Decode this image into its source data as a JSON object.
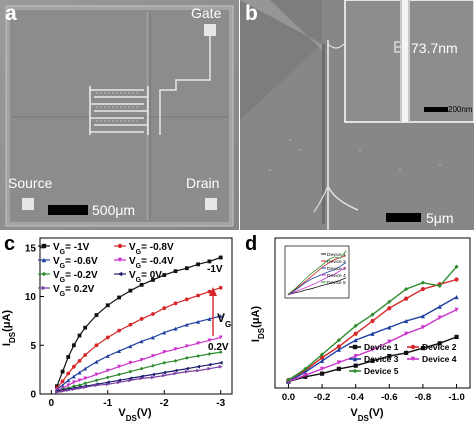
{
  "panel_a": {
    "letter": "a",
    "labels": {
      "gate": "Gate",
      "source": "Source",
      "drain": "Drain"
    },
    "scalebar": "500μm"
  },
  "panel_b": {
    "letter": "b",
    "inset_measure": "73.7nm",
    "inset_scalebar": "200nm",
    "scalebar": "5μm"
  },
  "panel_c": {
    "letter": "c",
    "legend_prefix": "V",
    "legend_sub": "G",
    "legend": [
      "-1V",
      "-0.8V",
      "-0.6V",
      "-0.4V",
      "-0.2V",
      "0V",
      "0.2V"
    ],
    "label_top": "-1V",
    "label_bottom": "0.2V",
    "vg_label": "V",
    "vg_sub": "G"
  },
  "panel_d": {
    "letter": "d",
    "legend": [
      "Device 1",
      "Device 2",
      "Device 3",
      "Device 4",
      "Device 5"
    ]
  },
  "chart_data": [
    {
      "id": "c",
      "type": "line",
      "xlabel": "V_DS(V)",
      "ylabel": "I_DS(μA)",
      "xlim": [
        0.2,
        -3.2
      ],
      "ylim": [
        0,
        16
      ],
      "xticks": [
        0,
        -1,
        -2,
        -3
      ],
      "yticks": [
        0,
        5,
        10,
        15
      ],
      "x": [
        -0.1,
        -0.2,
        -0.3,
        -0.4,
        -0.5,
        -0.6,
        -0.8,
        -1.0,
        -1.2,
        -1.4,
        -1.6,
        -1.8,
        -2.0,
        -2.2,
        -2.4,
        -2.6,
        -2.8,
        -3.0
      ],
      "series": [
        {
          "name": "-1V",
          "color": "#111111",
          "marker": "square",
          "values": [
            0.8,
            2.3,
            3.8,
            5.0,
            6.0,
            6.8,
            8.1,
            9.1,
            9.9,
            10.6,
            11.2,
            11.7,
            12.2,
            12.6,
            12.9,
            13.3,
            13.6,
            14.0
          ]
        },
        {
          "name": "-0.8V",
          "color": "#d62728",
          "marker": "circle",
          "values": [
            0.6,
            1.3,
            2.1,
            2.8,
            3.4,
            4.0,
            5.0,
            5.8,
            6.5,
            7.1,
            7.7,
            8.2,
            8.8,
            9.3,
            9.7,
            10.1,
            10.5,
            10.9
          ]
        },
        {
          "name": "-0.6V",
          "color": "#1f3fa0",
          "marker": "triangle",
          "values": [
            0.5,
            0.9,
            1.4,
            1.8,
            2.2,
            2.6,
            3.3,
            3.9,
            4.4,
            4.9,
            5.4,
            5.8,
            6.3,
            6.7,
            7.1,
            7.4,
            7.7,
            8.0
          ]
        },
        {
          "name": "-0.4V",
          "color": "#cc33cc",
          "marker": "triangle-down",
          "values": [
            0.4,
            0.6,
            0.9,
            1.2,
            1.4,
            1.6,
            2.0,
            2.4,
            2.8,
            3.2,
            3.5,
            3.9,
            4.3,
            4.6,
            4.9,
            5.2,
            5.5,
            5.8
          ]
        },
        {
          "name": "-0.2V",
          "color": "#2e8b2e",
          "marker": "diamond",
          "values": [
            0.3,
            0.5,
            0.6,
            0.8,
            0.9,
            1.1,
            1.4,
            1.7,
            2.0,
            2.3,
            2.6,
            2.9,
            3.2,
            3.4,
            3.7,
            3.9,
            4.1,
            4.3
          ]
        },
        {
          "name": "0V",
          "color": "#1c1c6e",
          "marker": "triangle-left",
          "values": [
            0.3,
            0.4,
            0.5,
            0.6,
            0.7,
            0.8,
            1.0,
            1.2,
            1.4,
            1.6,
            1.8,
            2.0,
            2.2,
            2.4,
            2.6,
            2.8,
            3.0,
            3.2
          ]
        },
        {
          "name": "0.2V",
          "color": "#7a3fa0",
          "marker": "triangle-right",
          "values": [
            0.2,
            0.3,
            0.4,
            0.5,
            0.6,
            0.7,
            0.9,
            1.0,
            1.2,
            1.4,
            1.6,
            1.7,
            1.9,
            2.1,
            2.3,
            2.4,
            2.6,
            2.8
          ]
        }
      ]
    },
    {
      "id": "d",
      "type": "line",
      "xlabel": "V_DS(V)",
      "ylabel": "I_DS(μA)",
      "xlim": [
        0.08,
        -1.08
      ],
      "ylim": [
        -0.04,
        0.9
      ],
      "xticks": [
        0.0,
        -0.2,
        -0.4,
        -0.6,
        -0.8,
        -1.0
      ],
      "xticklabels": [
        "0.0",
        "-0.2",
        "-0.4",
        "-0.6",
        "-0.8",
        "-1.0"
      ],
      "x": [
        0.0,
        -0.1,
        -0.2,
        -0.3,
        -0.4,
        -0.5,
        -0.6,
        -0.7,
        -0.8,
        -0.9,
        -1.0
      ],
      "series": [
        {
          "name": "Device 1",
          "color": "#111111",
          "marker": "square",
          "values": [
            0.0,
            0.03,
            0.05,
            0.08,
            0.1,
            0.13,
            0.16,
            0.18,
            0.21,
            0.24,
            0.28
          ]
        },
        {
          "name": "Device 2",
          "color": "#d62728",
          "marker": "circle",
          "values": [
            0.01,
            0.07,
            0.15,
            0.22,
            0.3,
            0.38,
            0.46,
            0.52,
            0.58,
            0.61,
            0.64
          ]
        },
        {
          "name": "Device 3",
          "color": "#1f3fa0",
          "marker": "triangle",
          "values": [
            0.0,
            0.06,
            0.13,
            0.2,
            0.26,
            0.3,
            0.34,
            0.38,
            0.41,
            0.47,
            0.53
          ]
        },
        {
          "name": "Device 4",
          "color": "#cc33cc",
          "marker": "triangle-down",
          "values": [
            0.0,
            0.04,
            0.08,
            0.12,
            0.16,
            0.2,
            0.25,
            0.3,
            0.34,
            0.4,
            0.45
          ]
        },
        {
          "name": "Device 5",
          "color": "#2e8b2e",
          "marker": "diamond",
          "values": [
            0.01,
            0.08,
            0.17,
            0.26,
            0.35,
            0.42,
            0.5,
            0.58,
            0.62,
            0.6,
            0.72
          ]
        }
      ],
      "inset": {
        "xlim": [
          0.05,
          -1.05
        ],
        "ylim": [
          -0.05,
          0.8
        ]
      }
    }
  ]
}
